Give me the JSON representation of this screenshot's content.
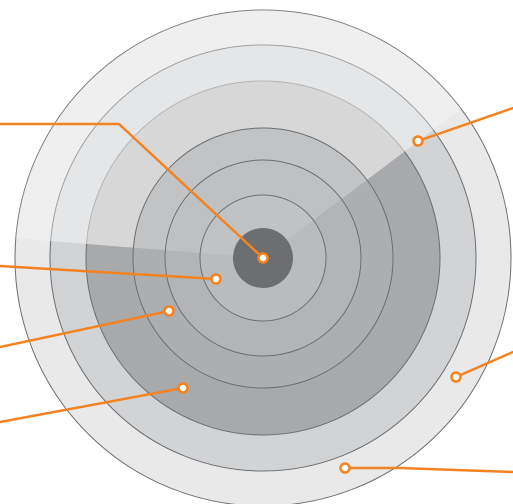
{
  "diagram": {
    "type": "concentric-radar-infographic",
    "ring_count": 6,
    "colors": {
      "background": "#ffffff",
      "ring_outer": "#e9e9ea",
      "ring_2": "#d2d3d4",
      "ring_3": "#a8a9ab",
      "ring_4": "#b1b2b4",
      "ring_5": "#bbbcbe",
      "ring_6": "#c4c5c7",
      "core": "#6d6e70",
      "sweep_highlight": "#ffffff",
      "ring_stroke": "#6d6e70",
      "leader_line": "#f58220",
      "marker_fill": "#ffffff"
    },
    "callouts": [
      {
        "id": "center-core"
      },
      {
        "id": "ring-4"
      },
      {
        "id": "ring-3"
      },
      {
        "id": "ring-2"
      },
      {
        "id": "sweep-upper-right"
      },
      {
        "id": "outer-ring-right"
      },
      {
        "id": "outer-ring-bottom"
      }
    ]
  }
}
